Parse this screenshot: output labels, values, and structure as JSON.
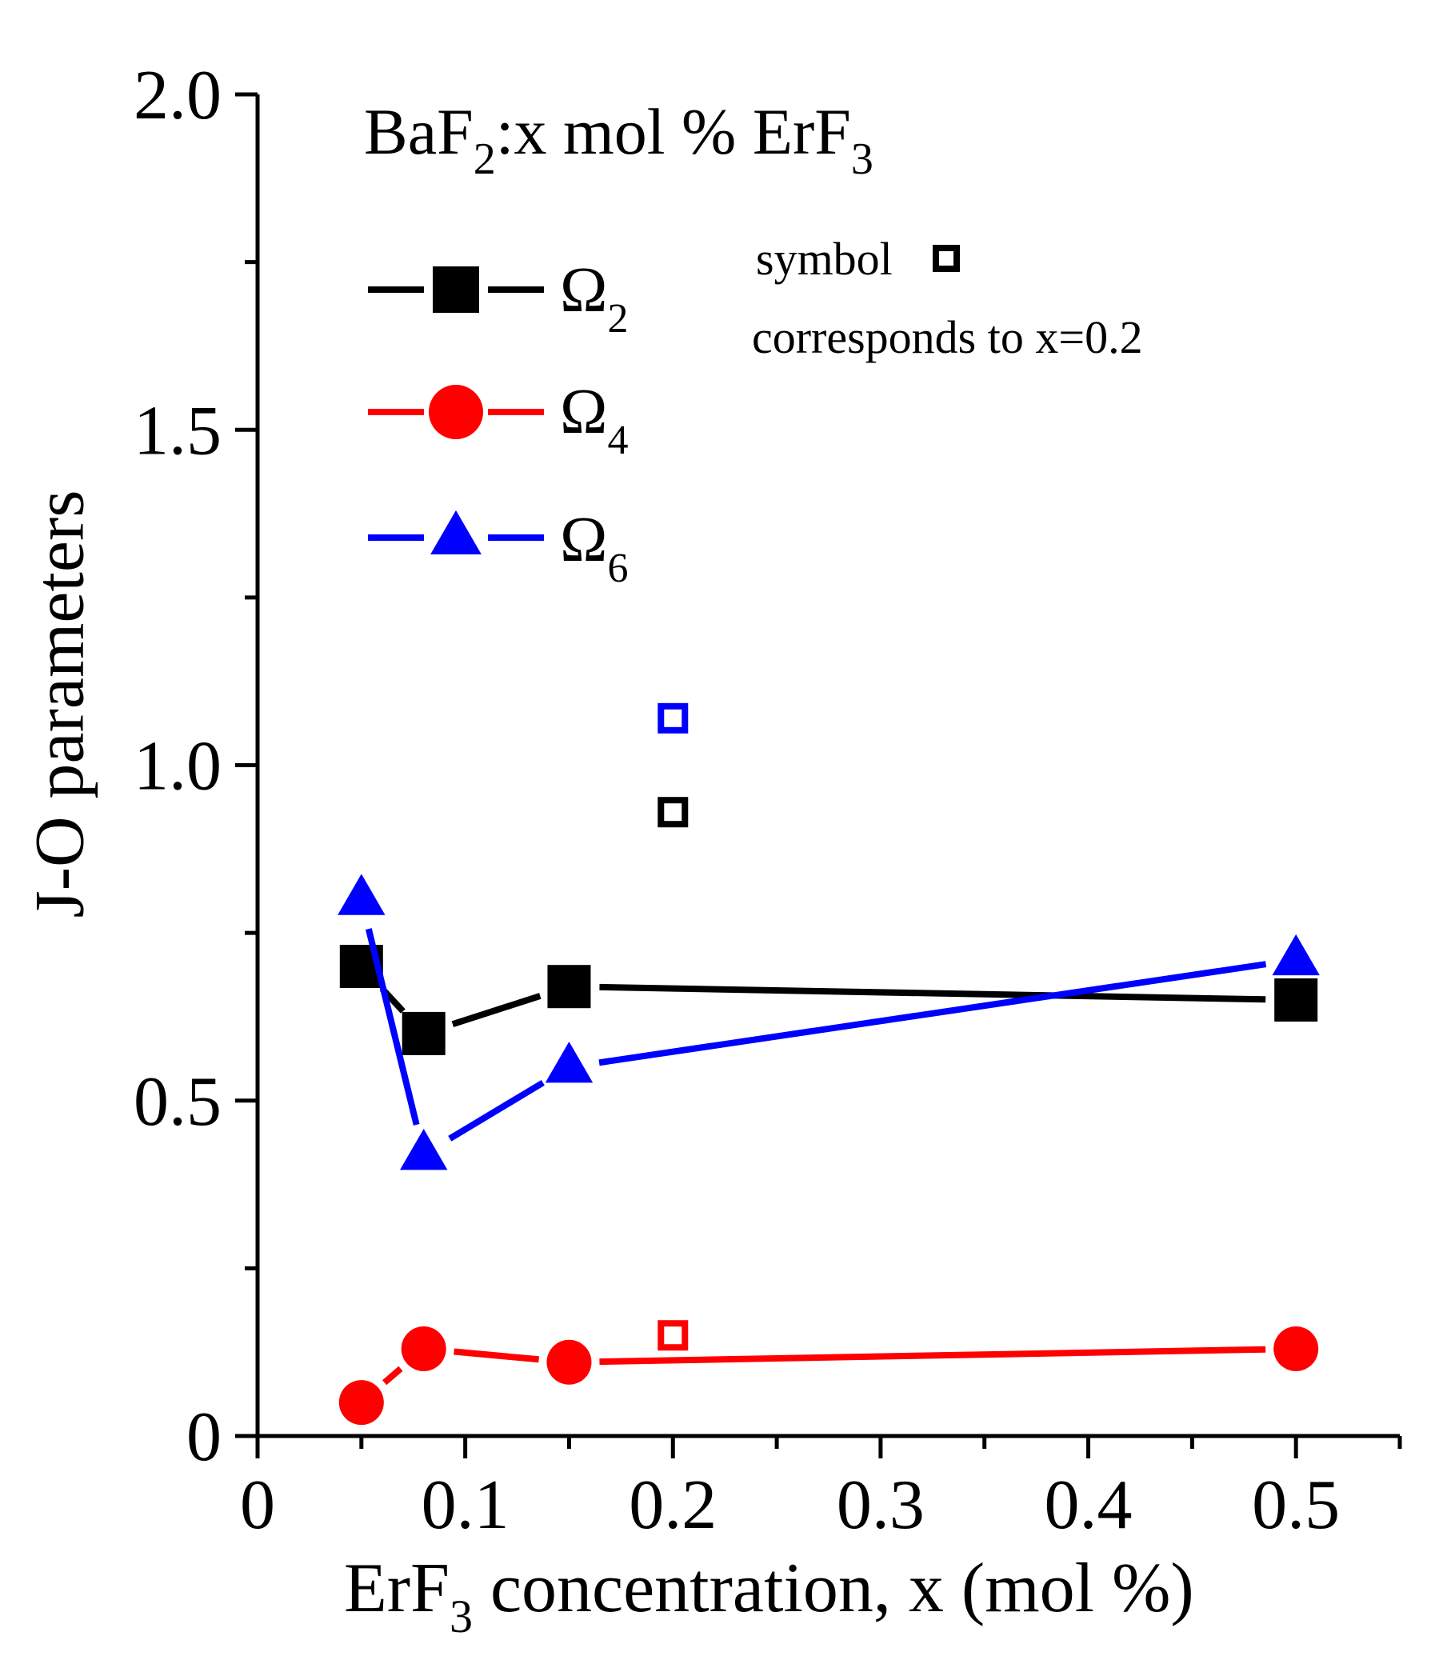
{
  "chart_data": {
    "type": "line",
    "title": "BaF",
    "title_sub1": "2",
    "title_mid": ":x mol % ErF",
    "title_sub2": "3",
    "xlabel": "ErF",
    "xlabel_sub": "3",
    "xlabel_rest": " concentration, x (mol %)",
    "ylabel": "J-O parameters",
    "xlim": [
      0,
      0.55
    ],
    "ylim": [
      0,
      2.0
    ],
    "x_ticks": [
      {
        "value": 0,
        "label": "0"
      },
      {
        "value": 0.1,
        "label": "0.1"
      },
      {
        "value": 0.2,
        "label": "0.2"
      },
      {
        "value": 0.3,
        "label": "0.3"
      },
      {
        "value": 0.4,
        "label": "0.4"
      },
      {
        "value": 0.5,
        "label": "0.5"
      }
    ],
    "y_ticks": [
      {
        "value": 0,
        "label": "0"
      },
      {
        "value": 0.5,
        "label": "0.5"
      },
      {
        "value": 1.0,
        "label": "1.0"
      },
      {
        "value": 1.5,
        "label": "1.5"
      },
      {
        "value": 2.0,
        "label": "2.0"
      }
    ],
    "series": [
      {
        "name": "Ω2",
        "symbol": "Ω",
        "sub": "2",
        "marker": "square",
        "color": "#000000",
        "x": [
          0.05,
          0.08,
          0.15,
          0.5
        ],
        "values": [
          0.7,
          0.6,
          0.67,
          0.65
        ]
      },
      {
        "name": "Ω4",
        "symbol": "Ω",
        "sub": "4",
        "marker": "circle",
        "color": "#ff0000",
        "x": [
          0.05,
          0.08,
          0.15,
          0.5
        ],
        "values": [
          0.05,
          0.13,
          0.11,
          0.13
        ]
      },
      {
        "name": "Ω6",
        "symbol": "Ω",
        "sub": "6",
        "marker": "triangle",
        "color": "#0000ff",
        "x": [
          0.05,
          0.08,
          0.15,
          0.5
        ],
        "values": [
          0.8,
          0.42,
          0.55,
          0.71
        ]
      }
    ],
    "open_points": [
      {
        "x": 0.2,
        "y": 1.07,
        "color": "#0000ff"
      },
      {
        "x": 0.2,
        "y": 0.93,
        "color": "#000000"
      },
      {
        "x": 0.2,
        "y": 0.15,
        "color": "#ff0000"
      }
    ],
    "note_line1": "symbol",
    "note_line2": "corresponds to x=0.2",
    "legend_position": "top-left"
  }
}
